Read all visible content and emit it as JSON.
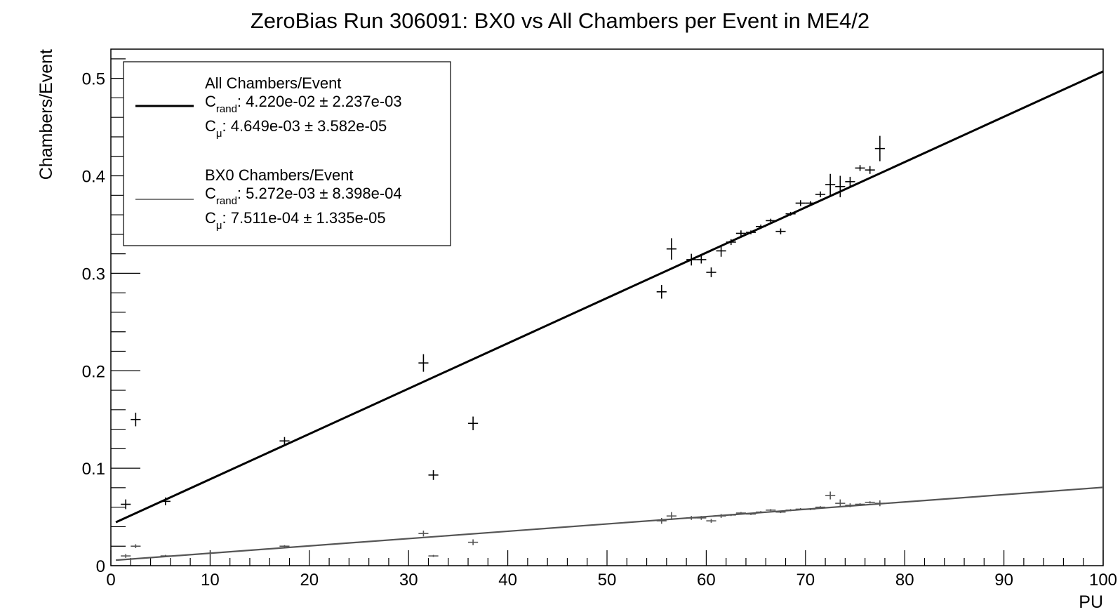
{
  "chart_data": {
    "type": "scatter",
    "title": "ZeroBias Run 306091: BX0 vs All Chambers per Event in ME4/2",
    "xlabel": "PU",
    "ylabel": "Chambers/Event",
    "xlim": [
      0,
      100
    ],
    "ylim": [
      0,
      0.53
    ],
    "x_ticks": [
      "0",
      "10",
      "20",
      "30",
      "40",
      "50",
      "60",
      "70",
      "80",
      "90",
      "100"
    ],
    "y_ticks": [
      "0",
      "0.1",
      "0.2",
      "0.3",
      "0.4",
      "0.5"
    ],
    "grid": false,
    "legend": {
      "placement": "top-left",
      "entries": [
        {
          "name": "All Chambers/Event",
          "crand_label": "C",
          "crand_sub": "rand",
          "crand_value": ": 4.220e-02 ± 2.237e-03",
          "cmu_label": "C",
          "cmu_sub": "μ",
          "cmu_value": ": 4.649e-03 ± 3.582e-05"
        },
        {
          "name": "BX0 Chambers/Event",
          "crand_label": "C",
          "crand_sub": "rand",
          "crand_value": ": 5.272e-03 ± 8.398e-04",
          "cmu_label": "C",
          "cmu_sub": "μ",
          "cmu_value": ": 7.511e-04 ± 1.335e-05"
        }
      ]
    },
    "series": [
      {
        "name": "All Chambers/Event",
        "color": "#000000",
        "fit": {
          "intercept": 0.0422,
          "slope": 0.004649,
          "x_range": [
            0.5,
            100
          ]
        },
        "points": [
          {
            "x": 1.5,
            "y": 0.063,
            "ex": 0.5,
            "ey": 0.005
          },
          {
            "x": 2.5,
            "y": 0.15,
            "ex": 0.5,
            "ey": 0.007
          },
          {
            "x": 5.5,
            "y": 0.066,
            "ex": 0.5,
            "ey": 0.004
          },
          {
            "x": 17.5,
            "y": 0.128,
            "ex": 0.5,
            "ey": 0.004
          },
          {
            "x": 31.5,
            "y": 0.208,
            "ex": 0.5,
            "ey": 0.009
          },
          {
            "x": 32.5,
            "y": 0.093,
            "ex": 0.5,
            "ey": 0.005
          },
          {
            "x": 36.5,
            "y": 0.146,
            "ex": 0.5,
            "ey": 0.007
          },
          {
            "x": 55.5,
            "y": 0.281,
            "ex": 0.5,
            "ey": 0.007
          },
          {
            "x": 56.5,
            "y": 0.325,
            "ex": 0.5,
            "ey": 0.011
          },
          {
            "x": 58.5,
            "y": 0.314,
            "ex": 0.5,
            "ey": 0.006
          },
          {
            "x": 59.5,
            "y": 0.314,
            "ex": 0.5,
            "ey": 0.004
          },
          {
            "x": 60.5,
            "y": 0.301,
            "ex": 0.5,
            "ey": 0.005
          },
          {
            "x": 61.5,
            "y": 0.323,
            "ex": 0.5,
            "ey": 0.006
          },
          {
            "x": 62.5,
            "y": 0.332,
            "ex": 0.5,
            "ey": 0.003
          },
          {
            "x": 63.5,
            "y": 0.341,
            "ex": 0.5,
            "ey": 0.003
          },
          {
            "x": 64.5,
            "y": 0.342,
            "ex": 0.5,
            "ey": 0.002
          },
          {
            "x": 65.5,
            "y": 0.348,
            "ex": 0.5,
            "ey": 0.002
          },
          {
            "x": 66.5,
            "y": 0.354,
            "ex": 0.5,
            "ey": 0.002
          },
          {
            "x": 67.5,
            "y": 0.343,
            "ex": 0.5,
            "ey": 0.003
          },
          {
            "x": 68.5,
            "y": 0.361,
            "ex": 0.5,
            "ey": 0.002
          },
          {
            "x": 69.5,
            "y": 0.372,
            "ex": 0.5,
            "ey": 0.003
          },
          {
            "x": 70.5,
            "y": 0.372,
            "ex": 0.5,
            "ey": 0.002
          },
          {
            "x": 71.5,
            "y": 0.381,
            "ex": 0.5,
            "ey": 0.003
          },
          {
            "x": 72.5,
            "y": 0.391,
            "ex": 0.5,
            "ey": 0.011
          },
          {
            "x": 73.5,
            "y": 0.389,
            "ex": 0.5,
            "ey": 0.011
          },
          {
            "x": 74.5,
            "y": 0.394,
            "ex": 0.5,
            "ey": 0.005
          },
          {
            "x": 75.5,
            "y": 0.408,
            "ex": 0.5,
            "ey": 0.003
          },
          {
            "x": 76.5,
            "y": 0.406,
            "ex": 0.5,
            "ey": 0.004
          },
          {
            "x": 77.5,
            "y": 0.428,
            "ex": 0.5,
            "ey": 0.013
          }
        ]
      },
      {
        "name": "BX0 Chambers/Event",
        "color": "#555555",
        "fit": {
          "intercept": 0.005272,
          "slope": 0.0007511,
          "x_range": [
            0.5,
            100
          ]
        },
        "points": [
          {
            "x": 1.5,
            "y": 0.01,
            "ex": 0.5,
            "ey": 0.002
          },
          {
            "x": 2.5,
            "y": 0.02,
            "ex": 0.5,
            "ey": 0.002
          },
          {
            "x": 5.5,
            "y": 0.01,
            "ex": 0.5,
            "ey": 0.001
          },
          {
            "x": 17.5,
            "y": 0.02,
            "ex": 0.5,
            "ey": 0.001
          },
          {
            "x": 31.5,
            "y": 0.033,
            "ex": 0.5,
            "ey": 0.003
          },
          {
            "x": 32.5,
            "y": 0.01,
            "ex": 0.5,
            "ey": 0.001
          },
          {
            "x": 36.5,
            "y": 0.024,
            "ex": 0.5,
            "ey": 0.003
          },
          {
            "x": 55.5,
            "y": 0.046,
            "ex": 0.5,
            "ey": 0.003
          },
          {
            "x": 56.5,
            "y": 0.051,
            "ex": 0.5,
            "ey": 0.004
          },
          {
            "x": 58.5,
            "y": 0.049,
            "ex": 0.5,
            "ey": 0.002
          },
          {
            "x": 59.5,
            "y": 0.049,
            "ex": 0.5,
            "ey": 0.002
          },
          {
            "x": 60.5,
            "y": 0.046,
            "ex": 0.5,
            "ey": 0.002
          },
          {
            "x": 61.5,
            "y": 0.051,
            "ex": 0.5,
            "ey": 0.002
          },
          {
            "x": 62.5,
            "y": 0.052,
            "ex": 0.5,
            "ey": 0.001
          },
          {
            "x": 63.5,
            "y": 0.054,
            "ex": 0.5,
            "ey": 0.001
          },
          {
            "x": 64.5,
            "y": 0.053,
            "ex": 0.5,
            "ey": 0.001
          },
          {
            "x": 65.5,
            "y": 0.055,
            "ex": 0.5,
            "ey": 0.001
          },
          {
            "x": 66.5,
            "y": 0.057,
            "ex": 0.5,
            "ey": 0.001
          },
          {
            "x": 67.5,
            "y": 0.055,
            "ex": 0.5,
            "ey": 0.001
          },
          {
            "x": 68.5,
            "y": 0.057,
            "ex": 0.5,
            "ey": 0.001
          },
          {
            "x": 69.5,
            "y": 0.058,
            "ex": 0.5,
            "ey": 0.001
          },
          {
            "x": 70.5,
            "y": 0.058,
            "ex": 0.5,
            "ey": 0.001
          },
          {
            "x": 71.5,
            "y": 0.06,
            "ex": 0.5,
            "ey": 0.001
          },
          {
            "x": 72.5,
            "y": 0.072,
            "ex": 0.5,
            "ey": 0.004
          },
          {
            "x": 73.5,
            "y": 0.064,
            "ex": 0.5,
            "ey": 0.004
          },
          {
            "x": 74.5,
            "y": 0.062,
            "ex": 0.5,
            "ey": 0.002
          },
          {
            "x": 75.5,
            "y": 0.063,
            "ex": 0.5,
            "ey": 0.001
          },
          {
            "x": 76.5,
            "y": 0.065,
            "ex": 0.5,
            "ey": 0.001
          },
          {
            "x": 77.5,
            "y": 0.064,
            "ex": 0.5,
            "ey": 0.003
          }
        ]
      }
    ]
  }
}
